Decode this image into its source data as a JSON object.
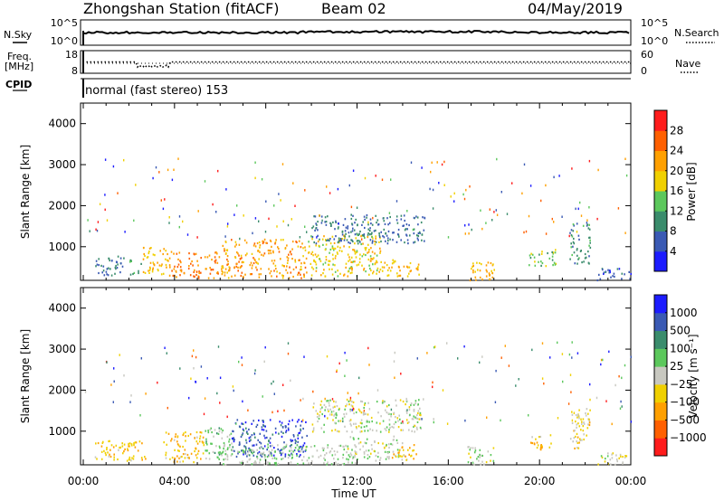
{
  "header": {
    "title": "Zhongshan Station (fitACF)",
    "beam": "Beam 02",
    "date": "04/May/2019"
  },
  "side_labels": {
    "nsky": "N.Sky",
    "freq_line1": "Freq.",
    "freq_line2": "[MHz]",
    "cpid": "CPID",
    "nsearch": "N.Search",
    "nave": "Nave"
  },
  "cpid_text": "normal (fast stereo) 153",
  "noise_axis": {
    "left_top": "10^5",
    "left_bottom": "10^0",
    "right_top": "10^5",
    "right_bottom": "10^0"
  },
  "freq_axis": {
    "left_top": "18",
    "left_bottom": "8",
    "right_top": "60",
    "right_bottom": "0"
  },
  "colors": {
    "power": [
      "#1c1cff",
      "#3a5ab4",
      "#3a8c6c",
      "#5cc85c",
      "#f0d000",
      "#ffa000",
      "#ff6000",
      "#ff1c1c"
    ],
    "velocity": [
      "#ff1c1c",
      "#ff6000",
      "#ffa000",
      "#f0d000",
      "#c8c8c0",
      "#5cc85c",
      "#3a8c6c",
      "#3a5ab4",
      "#1c1cff"
    ]
  },
  "chart_data": [
    {
      "type": "heatmap",
      "name_field": "power",
      "ylabel": "Slant Range [km]",
      "xlabel": "",
      "x_ticks": [
        "00:00",
        "04:00",
        "08:00",
        "12:00",
        "16:00",
        "20:00",
        "00:00"
      ],
      "xlim_hours": [
        0,
        24
      ],
      "ylim_km": [
        180,
        4500
      ],
      "y_ticks": [
        "1000",
        "2000",
        "3000",
        "4000"
      ],
      "colorbar_label": "Power [dB]",
      "colorbar_ticks": [
        "28",
        "24",
        "20",
        "16",
        "12",
        "8",
        "4"
      ],
      "colorbar_range": [
        0,
        32
      ],
      "echo_regions": [
        {
          "t": [
            0.5,
            1.8
          ],
          "r": [
            300,
            800
          ],
          "level": 8
        },
        {
          "t": [
            2.0,
            2.6
          ],
          "r": [
            300,
            700
          ],
          "level": 12
        },
        {
          "t": [
            2.6,
            3.7
          ],
          "r": [
            350,
            1000
          ],
          "level": 20
        },
        {
          "t": [
            3.7,
            6.0
          ],
          "r": [
            250,
            900
          ],
          "level": 24
        },
        {
          "t": [
            6.0,
            9.8
          ],
          "r": [
            250,
            1200
          ],
          "level": 22
        },
        {
          "t": [
            9.8,
            13.0
          ],
          "r": [
            300,
            1300
          ],
          "level": 18
        },
        {
          "t": [
            10.0,
            15.0
          ],
          "r": [
            1100,
            1800
          ],
          "level": 8
        },
        {
          "t": [
            13.0,
            14.7
          ],
          "r": [
            300,
            700
          ],
          "level": 20
        },
        {
          "t": [
            16.8,
            18.0
          ],
          "r": [
            200,
            650
          ],
          "level": 20
        },
        {
          "t": [
            19.5,
            20.7
          ],
          "r": [
            550,
            950
          ],
          "level": 14
        },
        {
          "t": [
            21.3,
            22.2
          ],
          "r": [
            600,
            1600
          ],
          "level": 10
        },
        {
          "t": [
            22.5,
            24.0
          ],
          "r": [
            200,
            500
          ],
          "level": 6
        }
      ]
    },
    {
      "type": "heatmap",
      "name_field": "velocity",
      "ylabel": "Slant Range [km]",
      "xlabel": "Time UT",
      "x_ticks": [
        "00:00",
        "04:00",
        "08:00",
        "12:00",
        "16:00",
        "20:00",
        "00:00"
      ],
      "xlim_hours": [
        0,
        24
      ],
      "ylim_km": [
        180,
        4500
      ],
      "y_ticks": [
        "1000",
        "2000",
        "3000",
        "4000"
      ],
      "colorbar_label": "Velocity [m s⁻¹]",
      "colorbar_ticks": [
        "1000",
        "500",
        "100",
        "25",
        "−25",
        "−100",
        "−500",
        "−1000"
      ],
      "colorbar_range": [
        -1000,
        1000
      ],
      "echo_regions": [
        {
          "t": [
            0.5,
            2.8
          ],
          "r": [
            300,
            800
          ],
          "level": -300
        },
        {
          "t": [
            3.5,
            5.3
          ],
          "r": [
            250,
            1000
          ],
          "level": -300
        },
        {
          "t": [
            5.3,
            6.5
          ],
          "r": [
            300,
            1100
          ],
          "level": 150
        },
        {
          "t": [
            6.5,
            9.8
          ],
          "r": [
            400,
            1300
          ],
          "level": 700
        },
        {
          "t": [
            6.0,
            12.0
          ],
          "r": [
            200,
            700
          ],
          "level": 100
        },
        {
          "t": [
            10.0,
            14.8
          ],
          "r": [
            1000,
            1800
          ],
          "level": 0
        },
        {
          "t": [
            11.5,
            14.0
          ],
          "r": [
            300,
            900
          ],
          "level": 60
        },
        {
          "t": [
            13.5,
            14.7
          ],
          "r": [
            300,
            700
          ],
          "level": -300
        },
        {
          "t": [
            16.8,
            18.0
          ],
          "r": [
            200,
            650
          ],
          "level": 0
        },
        {
          "t": [
            19.5,
            20.5
          ],
          "r": [
            550,
            950
          ],
          "level": -300
        },
        {
          "t": [
            21.3,
            22.2
          ],
          "r": [
            600,
            1600
          ],
          "level": -150
        },
        {
          "t": [
            22.5,
            24.0
          ],
          "r": [
            200,
            500
          ],
          "level": -100
        }
      ]
    }
  ]
}
